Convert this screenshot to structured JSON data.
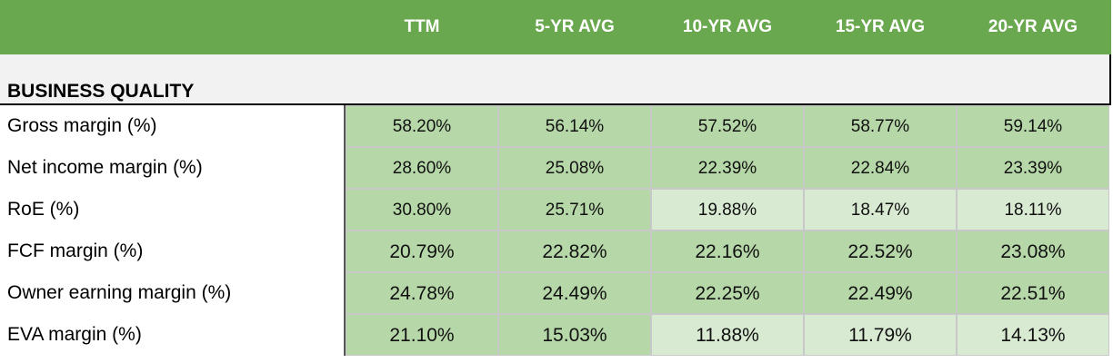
{
  "headers": [
    "TTM",
    "5-YR AVG",
    "10-YR AVG",
    "15-YR AVG",
    "20-YR AVG"
  ],
  "section_title": "BUSINESS QUALITY",
  "rows": [
    {
      "label": "Gross margin (%)",
      "values": [
        "58.20%",
        "56.14%",
        "57.52%",
        "58.77%",
        "59.14%"
      ]
    },
    {
      "label": "Net income margin (%)",
      "values": [
        "28.60%",
        "25.08%",
        "22.39%",
        "22.84%",
        "23.39%"
      ]
    },
    {
      "label": "RoE (%)",
      "values": [
        "30.80%",
        "25.71%",
        "19.88%",
        "18.47%",
        "18.11%"
      ]
    },
    {
      "label": "FCF margin (%)",
      "values": [
        "20.79%",
        "22.82%",
        "22.16%",
        "22.52%",
        "23.08%"
      ]
    },
    {
      "label": "Owner earning margin (%)",
      "values": [
        "24.78%",
        "24.49%",
        "22.25%",
        "22.49%",
        "22.51%"
      ]
    },
    {
      "label": "EVA margin (%)",
      "values": [
        "21.10%",
        "15.03%",
        "11.88%",
        "11.79%",
        "14.13%"
      ]
    }
  ],
  "colors": {
    "header_green": "#6aa84f",
    "cell_mid_green": "#b6d7a8",
    "cell_light_green": "#d9ead3"
  }
}
